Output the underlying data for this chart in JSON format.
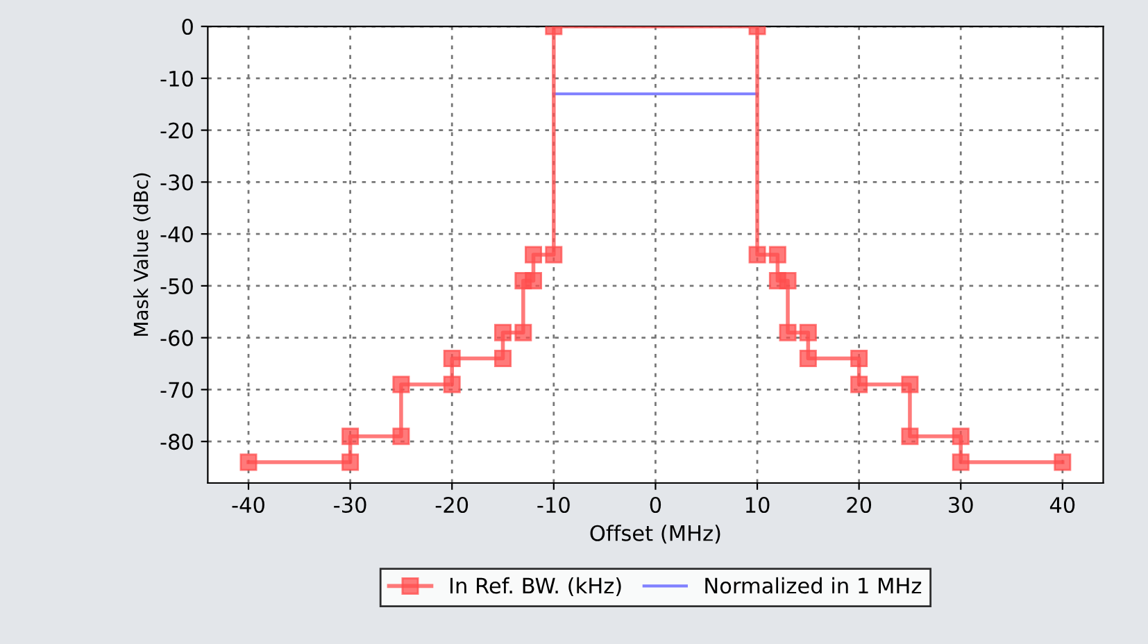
{
  "chart_data": {
    "type": "line",
    "xlabel": "Offset (MHz)",
    "ylabel": "Mask Value (dBc)",
    "xlim": [
      -44,
      44
    ],
    "xticks": [
      -40,
      -30,
      -20,
      -10,
      0,
      10,
      20,
      30,
      40
    ],
    "ylim": [
      -88,
      0
    ],
    "yticks": [
      -80,
      -70,
      -60,
      -50,
      -40,
      -30,
      -20,
      -10,
      0
    ],
    "grid": true,
    "legend": "bottom",
    "series": [
      {
        "name": "Normalized in 1 MHz",
        "color": "#8080ff",
        "marker": "none",
        "x": [
          -10,
          10
        ],
        "values": [
          -13,
          -13
        ]
      },
      {
        "name": "In Ref. BW. (kHz)",
        "color": "#ff4d4d",
        "marker": "square",
        "x": [
          -40,
          -30,
          -30,
          -25,
          -25,
          -20,
          -20,
          -15,
          -15,
          -13,
          -13,
          -12,
          -12,
          -10,
          -10,
          10,
          10,
          12,
          12,
          13,
          13,
          15,
          15,
          20,
          20,
          25,
          25,
          30,
          30,
          40
        ],
        "values": [
          -84,
          -84,
          -79,
          -79,
          -69,
          -69,
          -64,
          -64,
          -59,
          -59,
          -49,
          -49,
          -44,
          -44,
          0,
          0,
          -44,
          -44,
          -49,
          -49,
          -59,
          -59,
          -64,
          -64,
          -69,
          -69,
          -79,
          -79,
          -84,
          -84
        ]
      }
    ]
  }
}
